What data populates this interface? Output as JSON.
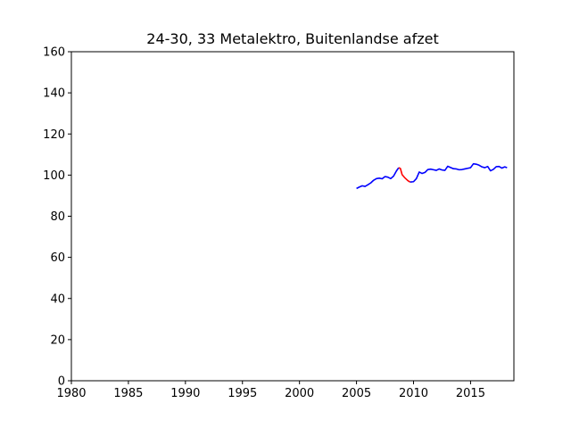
{
  "chart_data": {
    "type": "line",
    "title": "24-30, 33 Metalektro, Buitenlandse afzet",
    "xlabel": "",
    "ylabel": "",
    "xlim": [
      1980,
      2018.8
    ],
    "ylim": [
      0,
      160
    ],
    "xticks": [
      1980,
      1985,
      1990,
      1995,
      2000,
      2005,
      2010,
      2015
    ],
    "yticks": [
      0,
      20,
      40,
      60,
      80,
      100,
      120,
      140,
      160
    ],
    "grid": false,
    "legend": "none",
    "series": [
      {
        "color": "#0000ff",
        "points": [
          [
            2005.0,
            93.5
          ],
          [
            2005.25,
            94.2
          ],
          [
            2005.5,
            94.8
          ],
          [
            2005.75,
            94.5
          ],
          [
            2006.0,
            95.3
          ],
          [
            2006.25,
            96.2
          ],
          [
            2006.5,
            97.5
          ],
          [
            2006.75,
            98.3
          ],
          [
            2007.0,
            98.5
          ],
          [
            2007.25,
            98.2
          ],
          [
            2007.5,
            99.3
          ],
          [
            2007.75,
            99.0
          ],
          [
            2008.0,
            98.3
          ],
          [
            2008.25,
            99.5
          ],
          [
            2008.5,
            102.0
          ],
          [
            2008.7,
            103.6
          ]
        ]
      },
      {
        "color": "#ff0000",
        "points": [
          [
            2008.7,
            103.6
          ],
          [
            2008.85,
            103.2
          ],
          [
            2009.0,
            100.2
          ],
          [
            2009.25,
            98.6
          ],
          [
            2009.5,
            97.3
          ],
          [
            2009.7,
            96.6
          ]
        ]
      },
      {
        "color": "#0000ff",
        "points": [
          [
            2009.7,
            96.6
          ],
          [
            2010.0,
            96.8
          ],
          [
            2010.25,
            98.3
          ],
          [
            2010.5,
            101.5
          ],
          [
            2010.75,
            100.8
          ],
          [
            2011.0,
            101.3
          ],
          [
            2011.25,
            102.7
          ],
          [
            2011.5,
            102.9
          ],
          [
            2011.75,
            102.6
          ],
          [
            2012.0,
            102.3
          ],
          [
            2012.25,
            103.0
          ],
          [
            2012.5,
            102.5
          ],
          [
            2012.75,
            102.3
          ],
          [
            2013.0,
            104.3
          ],
          [
            2013.25,
            103.7
          ],
          [
            2013.5,
            103.1
          ],
          [
            2013.75,
            103.0
          ],
          [
            2014.0,
            102.6
          ],
          [
            2014.25,
            102.7
          ],
          [
            2014.5,
            103.0
          ],
          [
            2014.75,
            103.3
          ],
          [
            2015.0,
            103.6
          ],
          [
            2015.25,
            105.5
          ],
          [
            2015.5,
            105.3
          ],
          [
            2015.75,
            104.8
          ],
          [
            2016.0,
            104.0
          ],
          [
            2016.25,
            103.6
          ],
          [
            2016.5,
            104.2
          ],
          [
            2016.75,
            102.1
          ],
          [
            2017.0,
            102.8
          ],
          [
            2017.25,
            104.1
          ],
          [
            2017.5,
            104.2
          ],
          [
            2017.75,
            103.4
          ],
          [
            2018.0,
            104.0
          ],
          [
            2018.2,
            103.6
          ]
        ]
      }
    ]
  }
}
